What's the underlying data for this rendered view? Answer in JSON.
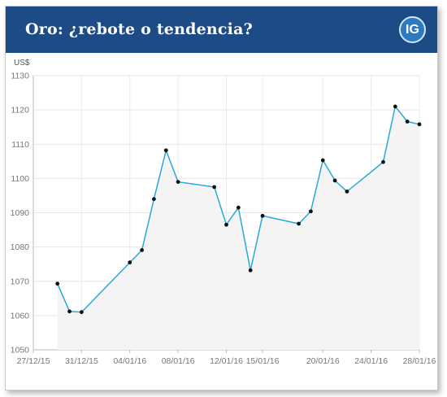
{
  "header": {
    "title": "Oro: ¿rebote o tendencia?",
    "logo_text": "IG",
    "background_color": "#1d4b86",
    "logo_color": "#2c79c4"
  },
  "chart_data": {
    "type": "line",
    "title": "Oro: ¿rebote o tendencia?",
    "ylabel": "US$",
    "xlabel": "",
    "ylim": [
      1050,
      1130
    ],
    "yticks": [
      1050,
      1060,
      1070,
      1080,
      1090,
      1100,
      1110,
      1120,
      1130
    ],
    "xlim": [
      "2015-12-27",
      "2016-01-28"
    ],
    "xtick_labels": [
      "27/12/15",
      "31/12/15",
      "04/01/16",
      "08/01/16",
      "12/01/16",
      "15/01/16",
      "20/01/16",
      "24/01/16",
      "28/01/16"
    ],
    "grid": true,
    "line_color": "#29a8dc",
    "marker_color": "#111111",
    "series": [
      {
        "x": [
          "2015-12-29",
          "2015-12-30",
          "2015-12-31",
          "2016-01-04",
          "2016-01-05",
          "2016-01-06",
          "2016-01-07",
          "2016-01-08",
          "2016-01-11",
          "2016-01-12",
          "2016-01-13",
          "2016-01-14",
          "2016-01-15",
          "2016-01-18",
          "2016-01-19",
          "2016-01-20",
          "2016-01-21",
          "2016-01-22",
          "2016-01-25",
          "2016-01-26",
          "2016-01-27",
          "2016-01-28"
        ],
        "values": [
          1069.3,
          1061.2,
          1061.0,
          1075.5,
          1079.1,
          1094.0,
          1108.2,
          1099.0,
          1097.5,
          1086.5,
          1091.5,
          1073.2,
          1089.1,
          1086.8,
          1090.4,
          1105.3,
          1099.4,
          1096.2,
          1104.8,
          1121.0,
          1116.6,
          1115.8
        ]
      }
    ]
  }
}
